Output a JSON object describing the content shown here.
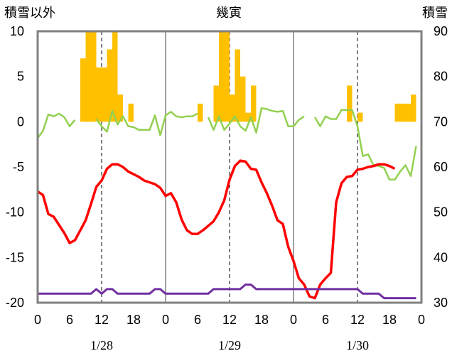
{
  "chart_data": {
    "type": "bar+line",
    "title": "幾寅",
    "left_axis_label": "積雪以外",
    "right_axis_label": "積雪",
    "left_ylim": [
      -20,
      10
    ],
    "right_ylim": [
      30,
      90
    ],
    "left_ticks": [
      "10",
      "5",
      "0",
      "-5",
      "-10",
      "-15",
      "-20"
    ],
    "right_ticks": [
      "90",
      "80",
      "70",
      "60",
      "50",
      "40",
      "30"
    ],
    "x_range_hours": [
      0,
      72
    ],
    "x_ticks": [
      "0",
      "6",
      "12",
      "18",
      "0",
      "6",
      "12",
      "18",
      "0",
      "6",
      "12",
      "18",
      "0"
    ],
    "dates": [
      {
        "label": "1/28"
      },
      {
        "label": "1/29"
      },
      {
        "label": "1/30"
      }
    ],
    "grid": "vertical lines at day boundaries (solid) and at 12h (dashed)",
    "colors": {
      "precip_bars": "#ffc000",
      "temperature": "#ff0000",
      "wind": "#92d050",
      "snow_depth": "#7030a0",
      "frame": "#808080"
    },
    "precip_bars": [
      {
        "hour": 8,
        "value": 7
      },
      {
        "hour": 9,
        "value": 10
      },
      {
        "hour": 10,
        "value": 10
      },
      {
        "hour": 11,
        "value": 6
      },
      {
        "hour": 12,
        "value": 6
      },
      {
        "hour": 13,
        "value": 8
      },
      {
        "hour": 14,
        "value": 10
      },
      {
        "hour": 15,
        "value": 3
      },
      {
        "hour": 17,
        "value": 2
      },
      {
        "hour": 30,
        "value": 2
      },
      {
        "hour": 33,
        "value": 4
      },
      {
        "hour": 34,
        "value": 10
      },
      {
        "hour": 35,
        "value": 10
      },
      {
        "hour": 36,
        "value": 3
      },
      {
        "hour": 37,
        "value": 8
      },
      {
        "hour": 38,
        "value": 5
      },
      {
        "hour": 39,
        "value": 1
      },
      {
        "hour": 40,
        "value": 4
      },
      {
        "hour": 58,
        "value": 4
      },
      {
        "hour": 60,
        "value": 1
      },
      {
        "hour": 67,
        "value": 2
      },
      {
        "hour": 68,
        "value": 2
      },
      {
        "hour": 69,
        "value": 2
      },
      {
        "hour": 70,
        "value": 3
      }
    ],
    "temperature": [
      [
        0,
        -7.7
      ],
      [
        1,
        -8.1
      ],
      [
        2,
        -10.2
      ],
      [
        3,
        -10.5
      ],
      [
        4,
        -11.4
      ],
      [
        5,
        -12.3
      ],
      [
        6,
        -13.4
      ],
      [
        7,
        -13.1
      ],
      [
        8,
        -12
      ],
      [
        9,
        -10.9
      ],
      [
        10,
        -9.1
      ],
      [
        11,
        -7.2
      ],
      [
        12,
        -6.5
      ],
      [
        13,
        -5.2
      ],
      [
        14,
        -4.7
      ],
      [
        15,
        -4.7
      ],
      [
        16,
        -5
      ],
      [
        17,
        -5.5
      ],
      [
        18,
        -5.8
      ],
      [
        19,
        -6.1
      ],
      [
        20,
        -6.5
      ],
      [
        21,
        -6.7
      ],
      [
        22,
        -6.9
      ],
      [
        23,
        -7.3
      ],
      [
        24,
        -8.2
      ],
      [
        25,
        -7.9
      ],
      [
        26,
        -8.9
      ],
      [
        27,
        -10.8
      ],
      [
        28,
        -12
      ],
      [
        29,
        -12.4
      ],
      [
        30,
        -12.4
      ],
      [
        31,
        -12
      ],
      [
        32,
        -11.5
      ],
      [
        33,
        -11
      ],
      [
        34,
        -10
      ],
      [
        35,
        -8.7
      ],
      [
        36,
        -6.4
      ],
      [
        37,
        -4.9
      ],
      [
        38,
        -4.3
      ],
      [
        39,
        -4.4
      ],
      [
        40,
        -5.2
      ],
      [
        41,
        -5.3
      ],
      [
        42,
        -6.7
      ],
      [
        43,
        -7.9
      ],
      [
        44,
        -9.3
      ],
      [
        45,
        -10.9
      ],
      [
        46,
        -11.3
      ],
      [
        47,
        -13.8
      ],
      [
        48,
        -15.4
      ],
      [
        49,
        -17.3
      ],
      [
        50,
        -18
      ],
      [
        51,
        -19.3
      ],
      [
        52,
        -19.5
      ],
      [
        53,
        -18
      ],
      [
        54,
        -17.3
      ],
      [
        55,
        -16.7
      ],
      [
        56,
        -8.9
      ],
      [
        57,
        -6.8
      ],
      [
        58,
        -6.1
      ],
      [
        59,
        -6
      ],
      [
        60,
        -5.3
      ],
      [
        61,
        -5.2
      ],
      [
        62,
        -5
      ],
      [
        63,
        -4.9
      ],
      [
        64,
        -4.7
      ],
      [
        65,
        -4.7
      ],
      [
        66,
        -4.9
      ],
      [
        67,
        -5.2
      ]
    ],
    "wind": [
      [
        0,
        -1.8
      ],
      [
        1,
        -1
      ],
      [
        2,
        0.8
      ],
      [
        3,
        0.6
      ],
      [
        4,
        0.9
      ],
      [
        5,
        0.5
      ],
      [
        6,
        -0.5
      ],
      [
        7,
        0.2
      ],
      [
        null,
        null
      ],
      [
        11,
        0.3
      ],
      [
        12,
        -0.5
      ],
      [
        13,
        -1.1
      ],
      [
        14,
        1.2
      ],
      [
        15,
        -0.3
      ],
      [
        16,
        0.6
      ],
      [
        17,
        -0.5
      ],
      [
        18,
        -0.6
      ],
      [
        19,
        -0.9
      ],
      [
        20,
        -0.9
      ],
      [
        21,
        -0.9
      ],
      [
        22,
        0.7
      ],
      [
        23,
        -1.5
      ],
      [
        24,
        0.7
      ],
      [
        25,
        1.1
      ],
      [
        26,
        0.6
      ],
      [
        27,
        0.5
      ],
      [
        28,
        0.6
      ],
      [
        29,
        0.6
      ],
      [
        30,
        0.9
      ],
      [
        null,
        null
      ],
      [
        32,
        0.5
      ],
      [
        33,
        -0.9
      ],
      [
        34,
        0.6
      ],
      [
        35,
        -0.9
      ],
      [
        36,
        -0.2
      ],
      [
        37,
        0.6
      ],
      [
        38,
        -0.5
      ],
      [
        39,
        -1
      ],
      [
        40,
        0.5
      ],
      [
        41,
        -1.2
      ],
      [
        42,
        1.5
      ],
      [
        43,
        1.4
      ],
      [
        44,
        1.2
      ],
      [
        45,
        1.1
      ],
      [
        46,
        1.2
      ],
      [
        47,
        -0.5
      ],
      [
        48,
        -0.5
      ],
      [
        49,
        0.2
      ],
      [
        50,
        0.6
      ],
      [
        null,
        null
      ],
      [
        52,
        0.5
      ],
      [
        53,
        -0.5
      ],
      [
        54,
        0.6
      ],
      [
        55,
        0.3
      ],
      [
        56,
        0.3
      ],
      [
        57,
        1.3
      ],
      [
        58,
        1.3
      ],
      [
        59,
        1.3
      ],
      [
        60,
        -0.5
      ],
      [
        61,
        -3.8
      ],
      [
        62,
        -3.6
      ],
      [
        63,
        -4.8
      ],
      [
        64,
        -4.9
      ],
      [
        65,
        -5.1
      ],
      [
        66,
        -6.4
      ],
      [
        67,
        -6.4
      ],
      [
        68,
        -5.5
      ],
      [
        69,
        -4.8
      ],
      [
        70,
        -6
      ],
      [
        71,
        -2.7
      ]
    ],
    "snow_depth": [
      [
        0,
        32
      ],
      [
        1,
        32
      ],
      [
        2,
        32
      ],
      [
        3,
        32
      ],
      [
        4,
        32
      ],
      [
        5,
        32
      ],
      [
        6,
        32
      ],
      [
        7,
        32
      ],
      [
        8,
        32
      ],
      [
        9,
        32
      ],
      [
        10,
        32
      ],
      [
        11,
        33
      ],
      [
        12,
        32
      ],
      [
        13,
        33
      ],
      [
        14,
        33
      ],
      [
        15,
        32
      ],
      [
        16,
        32
      ],
      [
        17,
        32
      ],
      [
        18,
        32
      ],
      [
        19,
        32
      ],
      [
        20,
        32
      ],
      [
        21,
        32
      ],
      [
        22,
        33
      ],
      [
        23,
        33
      ],
      [
        24,
        32
      ],
      [
        25,
        32
      ],
      [
        26,
        32
      ],
      [
        27,
        32
      ],
      [
        28,
        32
      ],
      [
        29,
        32
      ],
      [
        30,
        32
      ],
      [
        31,
        32
      ],
      [
        32,
        32
      ],
      [
        33,
        33
      ],
      [
        34,
        33
      ],
      [
        35,
        33
      ],
      [
        36,
        33
      ],
      [
        37,
        33
      ],
      [
        38,
        33
      ],
      [
        39,
        34
      ],
      [
        40,
        34
      ],
      [
        41,
        33
      ],
      [
        42,
        33
      ],
      [
        43,
        33
      ],
      [
        44,
        33
      ],
      [
        45,
        33
      ],
      [
        46,
        33
      ],
      [
        47,
        33
      ],
      [
        48,
        33
      ],
      [
        49,
        33
      ],
      [
        50,
        33
      ],
      [
        51,
        33
      ],
      [
        52,
        33
      ],
      [
        53,
        33
      ],
      [
        54,
        33
      ],
      [
        55,
        33
      ],
      [
        56,
        33
      ],
      [
        57,
        33
      ],
      [
        58,
        33
      ],
      [
        59,
        33
      ],
      [
        60,
        33
      ],
      [
        61,
        32
      ],
      [
        62,
        32
      ],
      [
        63,
        32
      ],
      [
        64,
        32
      ],
      [
        65,
        31
      ],
      [
        66,
        31
      ],
      [
        67,
        31
      ],
      [
        68,
        31
      ],
      [
        69,
        31
      ],
      [
        70,
        31
      ],
      [
        71,
        31
      ]
    ]
  }
}
